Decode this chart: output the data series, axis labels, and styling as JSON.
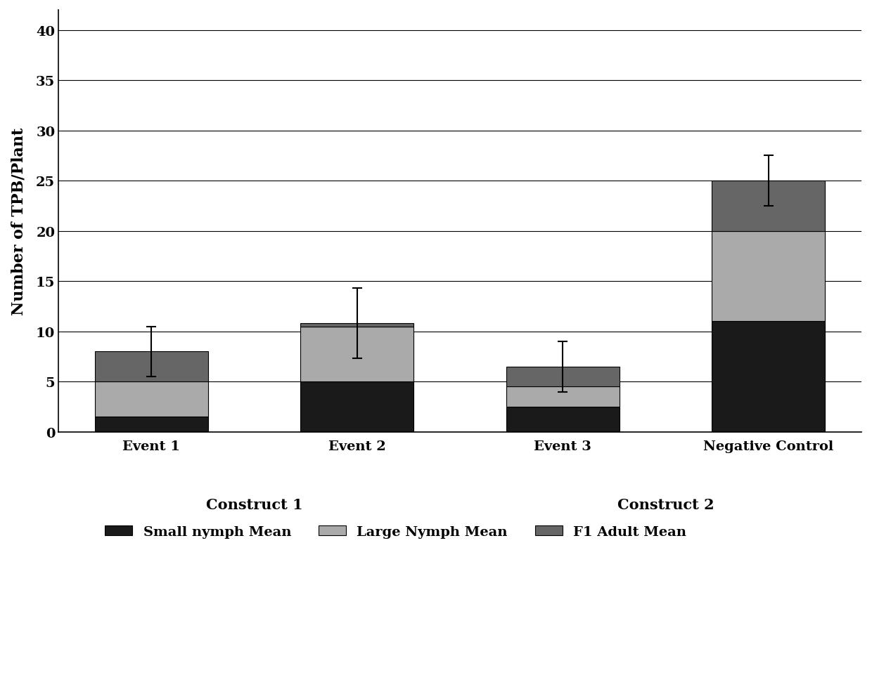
{
  "categories": [
    "Event 1",
    "Event 2",
    "Event 3",
    "Negative Control"
  ],
  "small_nymph": [
    1.5,
    5.0,
    2.5,
    11.0
  ],
  "large_nymph": [
    3.5,
    5.5,
    2.0,
    9.0
  ],
  "f1_adult": [
    3.0,
    0.3,
    2.0,
    5.0
  ],
  "errors": [
    2.5,
    3.5,
    2.5,
    2.5
  ],
  "totals": [
    8.0,
    10.8,
    6.5,
    25.0
  ],
  "ylabel": "Number of TPB/Plant",
  "ylim": [
    0,
    42
  ],
  "yticks": [
    0,
    5,
    10,
    15,
    20,
    25,
    30,
    35,
    40
  ],
  "color_small": "#1a1a1a",
  "color_large": "#aaaaaa",
  "color_f1": "#666666",
  "construct1_label": "Construct 1",
  "construct2_label": "Construct 2",
  "legend_small": "Small nymph Mean",
  "legend_large": "Large Nymph Mean",
  "legend_f1": "F1 Adult Mean",
  "bar_width": 0.55,
  "background_color": "#ffffff",
  "fontsize_axis_label": 16,
  "fontsize_tick": 14,
  "fontsize_construct": 15,
  "fontsize_legend": 14
}
